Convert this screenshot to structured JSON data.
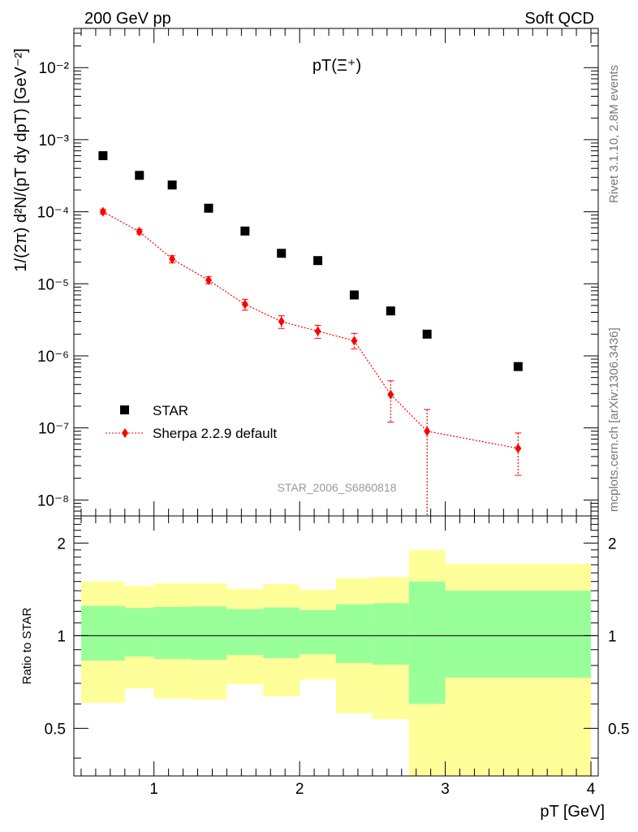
{
  "header": {
    "left": "200 GeV pp",
    "right": "Soft QCD"
  },
  "side_text": {
    "rivet": "Rivet 3.1.10,  2.8M events",
    "mcplots": "mcplots.cern.ch [arXiv:1306.3436]"
  },
  "chart_data": [
    {
      "type": "scatter",
      "title": "pT(Ξ⁺)",
      "watermark": "STAR_2006_S6860818",
      "ylabel": "1/(2π) d²N/(pT dy dpT) [GeV⁻²]",
      "yscale": "log",
      "ylim": [
        6e-09,
        0.035
      ],
      "xlim": [
        0.45,
        4.05
      ],
      "ytick_labels": [
        "10⁻⁸",
        "10⁻⁷",
        "10⁻⁶",
        "10⁻⁵",
        "10⁻⁴",
        "10⁻³",
        "10⁻²"
      ],
      "legend": {
        "placement": "bottom-left",
        "entries": [
          "STAR",
          "Sherpa 2.2.9 default"
        ]
      },
      "series": [
        {
          "name": "STAR",
          "color": "#000000",
          "marker": "square",
          "x": [
            0.65,
            0.9,
            1.125,
            1.375,
            1.625,
            1.875,
            2.125,
            2.375,
            2.625,
            2.875,
            3.5
          ],
          "y": [
            0.0006,
            0.00032,
            0.000235,
            0.000112,
            5.4e-05,
            2.65e-05,
            2.1e-05,
            7e-06,
            4.2e-06,
            2e-06,
            7.1e-07
          ]
        },
        {
          "name": "Sherpa 2.2.9 default",
          "color": "#ff0000",
          "marker": "diamond",
          "line": "dotted",
          "x": [
            0.65,
            0.9,
            1.125,
            1.375,
            1.625,
            1.875,
            2.125,
            2.375,
            2.625,
            2.875,
            3.5
          ],
          "y": [
            0.0001,
            5.3e-05,
            2.2e-05,
            1.12e-05,
            5.2e-06,
            3e-06,
            2.2e-06,
            1.62e-06,
            2.9e-07,
            9e-08,
            5.2e-08
          ],
          "y_low": [
            9.3e-05,
            4.9e-05,
            1.95e-05,
            1e-05,
            4.3e-06,
            2.4e-06,
            1.75e-06,
            1.25e-06,
            1.2e-07,
            5e-09,
            2.2e-08
          ],
          "y_high": [
            0.000108,
            5.7e-05,
            2.45e-05,
            1.25e-05,
            6.1e-06,
            3.6e-06,
            2.65e-06,
            2.05e-06,
            4.5e-07,
            1.8e-07,
            8.5e-08
          ]
        }
      ]
    },
    {
      "type": "area",
      "ylabel": "Ratio to STAR",
      "xlabel": "pT [GeV]",
      "yscale": "log",
      "ylim": [
        0.35,
        2.45
      ],
      "xlim": [
        0.45,
        4.05
      ],
      "xtick_labels": [
        "1",
        "2",
        "3",
        "4"
      ],
      "ytick_labels": [
        "0.5",
        "1",
        "2"
      ],
      "reference_line": 1,
      "bins": {
        "edges": [
          0.5,
          0.8,
          1.0,
          1.25,
          1.5,
          1.75,
          2.0,
          2.25,
          2.5,
          2.75,
          3.0,
          4.0
        ],
        "inner_band": {
          "color": "#99ff99",
          "low": [
            0.83,
            0.855,
            0.84,
            0.835,
            0.865,
            0.845,
            0.87,
            0.815,
            0.805,
            0.6,
            0.73
          ],
          "high": [
            1.25,
            1.23,
            1.24,
            1.245,
            1.22,
            1.235,
            1.21,
            1.265,
            1.275,
            1.5,
            1.4
          ]
        },
        "outer_band": {
          "color": "#ffff99",
          "low": [
            0.605,
            0.675,
            0.625,
            0.62,
            0.695,
            0.635,
            0.72,
            0.56,
            0.535,
            0.3,
            0.3
          ],
          "high": [
            1.5,
            1.45,
            1.48,
            1.48,
            1.42,
            1.47,
            1.41,
            1.54,
            1.55,
            1.9,
            1.71
          ]
        }
      }
    }
  ]
}
